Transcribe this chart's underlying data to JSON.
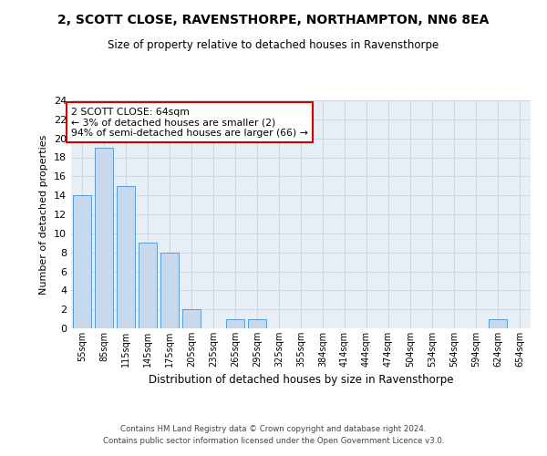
{
  "title": "2, SCOTT CLOSE, RAVENSTHORPE, NORTHAMPTON, NN6 8EA",
  "subtitle": "Size of property relative to detached houses in Ravensthorpe",
  "xlabel": "Distribution of detached houses by size in Ravensthorpe",
  "ylabel": "Number of detached properties",
  "bar_color": "#c9d9ed",
  "bar_edge_color": "#5b9bd5",
  "categories": [
    "55sqm",
    "85sqm",
    "115sqm",
    "145sqm",
    "175sqm",
    "205sqm",
    "235sqm",
    "265sqm",
    "295sqm",
    "325sqm",
    "355sqm",
    "384sqm",
    "414sqm",
    "444sqm",
    "474sqm",
    "504sqm",
    "534sqm",
    "564sqm",
    "594sqm",
    "624sqm",
    "654sqm"
  ],
  "values": [
    14,
    19,
    15,
    9,
    8,
    2,
    0,
    1,
    1,
    0,
    0,
    0,
    0,
    0,
    0,
    0,
    0,
    0,
    0,
    1,
    0
  ],
  "ylim": [
    0,
    24
  ],
  "yticks": [
    0,
    2,
    4,
    6,
    8,
    10,
    12,
    14,
    16,
    18,
    20,
    22,
    24
  ],
  "annotation_text": "2 SCOTT CLOSE: 64sqm\n← 3% of detached houses are smaller (2)\n94% of semi-detached houses are larger (66) →",
  "annotation_box_color": "#ffffff",
  "annotation_border_color": "#cc0000",
  "footer": "Contains HM Land Registry data © Crown copyright and database right 2024.\nContains public sector information licensed under the Open Government Licence v3.0.",
  "grid_color": "#c8d4e3",
  "background_color": "#e8eef5"
}
